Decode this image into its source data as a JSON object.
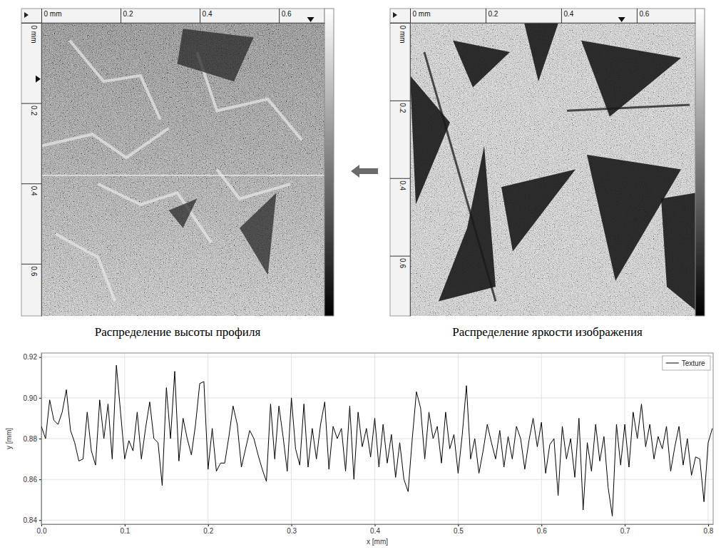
{
  "chart_data": [
    {
      "type": "image",
      "caption": "Распределение высоты профиля",
      "xlim": [
        0,
        0.715
      ],
      "ylim": [
        0,
        0.73
      ],
      "xticks": [
        {
          "value": 0,
          "label": "0 mm"
        },
        0.2,
        0.4,
        0.6
      ],
      "yticks": [
        {
          "value": 0,
          "label": "0 mm"
        },
        0.2,
        0.4,
        0.6
      ],
      "profile_y": 0.38,
      "cursor_x": 0.68,
      "cursor_y": 0.14
    },
    {
      "type": "image",
      "caption": "Распределение яркости изображения",
      "xlim": [
        0,
        0.755
      ],
      "ylim": [
        0,
        0.755
      ],
      "xticks": [
        {
          "value": 0,
          "label": "0 mm"
        },
        0.2,
        0.4,
        0.6
      ],
      "yticks": [
        {
          "value": 0,
          "label": "0 mm"
        },
        0.2,
        0.4,
        0.6
      ],
      "cursor_x": 0.56
    },
    {
      "type": "line",
      "xlabel": "x [mm]",
      "ylabel": "y [mm]",
      "x": [
        0,
        0.005,
        0.01,
        0.015,
        0.02,
        0.025,
        0.03,
        0.035,
        0.04,
        0.045,
        0.05,
        0.055,
        0.06,
        0.065,
        0.07,
        0.075,
        0.08,
        0.085,
        0.09,
        0.095,
        0.1,
        0.105,
        0.11,
        0.115,
        0.12,
        0.125,
        0.13,
        0.135,
        0.14,
        0.145,
        0.15,
        0.155,
        0.16,
        0.165,
        0.17,
        0.175,
        0.18,
        0.185,
        0.19,
        0.195,
        0.2,
        0.205,
        0.21,
        0.215,
        0.22,
        0.225,
        0.23,
        0.235,
        0.24,
        0.245,
        0.25,
        0.255,
        0.26,
        0.265,
        0.27,
        0.275,
        0.28,
        0.285,
        0.29,
        0.295,
        0.3,
        0.305,
        0.31,
        0.315,
        0.32,
        0.325,
        0.33,
        0.335,
        0.34,
        0.345,
        0.35,
        0.355,
        0.36,
        0.365,
        0.37,
        0.375,
        0.38,
        0.385,
        0.39,
        0.395,
        0.4,
        0.405,
        0.41,
        0.415,
        0.42,
        0.425,
        0.43,
        0.435,
        0.44,
        0.445,
        0.45,
        0.455,
        0.46,
        0.465,
        0.47,
        0.475,
        0.48,
        0.485,
        0.49,
        0.495,
        0.5,
        0.505,
        0.51,
        0.515,
        0.52,
        0.525,
        0.53,
        0.535,
        0.54,
        0.545,
        0.55,
        0.555,
        0.56,
        0.565,
        0.57,
        0.575,
        0.58,
        0.585,
        0.59,
        0.595,
        0.6,
        0.605,
        0.61,
        0.615,
        0.62,
        0.625,
        0.63,
        0.635,
        0.64,
        0.645,
        0.65,
        0.655,
        0.66,
        0.665,
        0.67,
        0.675,
        0.68,
        0.685,
        0.69,
        0.695,
        0.7,
        0.705,
        0.71,
        0.715,
        0.72,
        0.725,
        0.73,
        0.735,
        0.74,
        0.745,
        0.75,
        0.755,
        0.76,
        0.765,
        0.77,
        0.775,
        0.78,
        0.785,
        0.79,
        0.795,
        0.8,
        0.805
      ],
      "series": [
        {
          "name": "Texture",
          "color": "#000000",
          "values": [
            0.886,
            0.88,
            0.899,
            0.889,
            0.887,
            0.893,
            0.904,
            0.884,
            0.878,
            0.869,
            0.87,
            0.893,
            0.874,
            0.867,
            0.899,
            0.88,
            0.897,
            0.87,
            0.916,
            0.893,
            0.87,
            0.879,
            0.874,
            0.893,
            0.87,
            0.885,
            0.898,
            0.88,
            0.878,
            0.857,
            0.905,
            0.88,
            0.913,
            0.869,
            0.89,
            0.88,
            0.872,
            0.887,
            0.907,
            0.908,
            0.865,
            0.885,
            0.864,
            0.868,
            0.868,
            0.881,
            0.896,
            0.887,
            0.866,
            0.875,
            0.884,
            0.88,
            0.872,
            0.865,
            0.859,
            0.897,
            0.87,
            0.896,
            0.881,
            0.864,
            0.9,
            0.875,
            0.867,
            0.897,
            0.866,
            0.885,
            0.87,
            0.887,
            0.898,
            0.865,
            0.886,
            0.88,
            0.885,
            0.864,
            0.896,
            0.86,
            0.893,
            0.876,
            0.885,
            0.871,
            0.89,
            0.866,
            0.887,
            0.868,
            0.882,
            0.861,
            0.878,
            0.86,
            0.854,
            0.88,
            0.903,
            0.895,
            0.87,
            0.893,
            0.88,
            0.886,
            0.868,
            0.893,
            0.875,
            0.882,
            0.863,
            0.882,
            0.906,
            0.87,
            0.88,
            0.863,
            0.874,
            0.887,
            0.878,
            0.87,
            0.884,
            0.866,
            0.881,
            0.87,
            0.886,
            0.88,
            0.865,
            0.879,
            0.89,
            0.876,
            0.888,
            0.863,
            0.877,
            0.88,
            0.852,
            0.886,
            0.87,
            0.88,
            0.861,
            0.89,
            0.845,
            0.878,
            0.864,
            0.887,
            0.869,
            0.881,
            0.856,
            0.842,
            0.887,
            0.867,
            0.887,
            0.866,
            0.893,
            0.88,
            0.897,
            0.876,
            0.887,
            0.87,
            0.881,
            0.875,
            0.886,
            0.864,
            0.876,
            0.886,
            0.867,
            0.88,
            0.862,
            0.871,
            0.87,
            0.849,
            0.878,
            0.885
          ]
        }
      ],
      "xlim": [
        0,
        0.806
      ],
      "ylim": [
        0.838,
        0.922
      ],
      "xticks": [
        {
          "value": 0,
          "label": "0.0"
        },
        0.1,
        0.2,
        0.3,
        0.4,
        0.5,
        0.6,
        0.7,
        0.8
      ],
      "yticks": [
        0.84,
        0.86,
        0.88,
        {
          "value": 0.9,
          "label": "0.90"
        },
        0.92
      ],
      "grid": true,
      "legend": "upper right"
    }
  ]
}
